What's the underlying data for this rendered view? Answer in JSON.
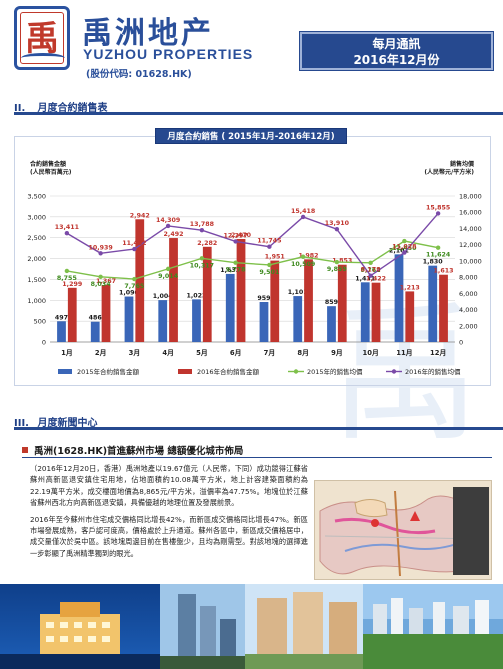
{
  "header": {
    "logo_char": "禹",
    "logo_sub": "洲",
    "brand_cn": "禹洲地产",
    "brand_en": "YUZHOU PROPERTIES",
    "stock_code": "(股份代码: 01628.HK)",
    "report_line1": "每月通訊",
    "report_line2": "2016年12月份"
  },
  "section2": {
    "num": "II.",
    "title": "月度合約銷售表"
  },
  "section3": {
    "num": "III.",
    "title": "月度新聞中心"
  },
  "watermark": "禹",
  "chart_data": {
    "type": "bar",
    "title": "月度合約銷售 ( 2015年1月-2016年12月)",
    "ylabel_left": "合約銷售金額\n(人民幣百萬元)",
    "ylabel_right": "銷售均價\n(人民幣元/平方米)",
    "ylim_left": [
      0,
      3500
    ],
    "ylim_right": [
      0,
      18000
    ],
    "yticks_left": [
      "0",
      "500",
      "1,000",
      "1,500",
      "2,000",
      "2,500",
      "3,000",
      "3,500"
    ],
    "yticks_right": [
      "0",
      "2,000",
      "4,000",
      "6,000",
      "8,000",
      "10,000",
      "12,000",
      "14,000",
      "16,000",
      "18,000"
    ],
    "categories": [
      "1月",
      "2月",
      "3月",
      "4月",
      "5月",
      "6月",
      "7月",
      "8月",
      "9月",
      "10月",
      "11月",
      "12月"
    ],
    "bars": [
      {
        "name": "2015年合約銷售金額",
        "color": "#3a66b8",
        "label_color": "#1a1a1a",
        "values": [
          497,
          486,
          1090,
          1004,
          1022,
          1632,
          959,
          1101,
          859,
          1431,
          2101,
          1830
        ],
        "labels": [
          "497",
          "486",
          "1,090",
          "1,004",
          "1,022",
          "1,632",
          "959",
          "1,101",
          "859",
          "1,431",
          "2,101",
          "1,830"
        ]
      },
      {
        "name": "2016年合約銷售金額",
        "color": "#c0352e",
        "label_color": "#c0352e",
        "values": [
          1299,
          1367,
          2942,
          2492,
          2282,
          2470,
          1951,
          1982,
          1853,
          1422,
          1213,
          1613
        ],
        "labels": [
          "1,299",
          "1,367",
          "2,942",
          "2,492",
          "2,282",
          "2,470",
          "1,951",
          "1,982",
          "1,853",
          "1,422",
          "1,213",
          "1,613"
        ]
      }
    ],
    "lines": [
      {
        "name": "2015年的銷售均價",
        "color": "#7ec04a",
        "label_color": "#3e8a1e",
        "values": [
          8755,
          8034,
          7765,
          9014,
          10317,
          9778,
          9501,
          10509,
          9859,
          9762,
          12450,
          11624
        ],
        "labels": [
          "8,755",
          "8,034",
          "7,765",
          "9,014",
          "10,317",
          "9,778",
          "9,501",
          "10,509",
          "9,859",
          "9,762",
          "12,450",
          "11,624"
        ]
      },
      {
        "name": "2016年的銷售均價",
        "color": "#7a4aa8",
        "label_color": "#c0352e",
        "values": [
          13411,
          10939,
          11462,
          14309,
          13788,
          12397,
          11745,
          15418,
          13910,
          8178,
          11028,
          15855
        ],
        "labels": [
          "13,411",
          "10,939",
          "11,462",
          "14,309",
          "13,788",
          "12,397",
          "11,745",
          "15,418",
          "13,910",
          "8,178",
          "11,028",
          "15,855"
        ]
      }
    ],
    "legend": [
      "2015年合約銷售金額",
      "2016年合約銷售金額",
      "2015年的銷售均價",
      "2016年的銷售均價"
    ],
    "legend_position": "bottom",
    "grid": true
  },
  "news": {
    "headline": "禹洲(1628.HK)首進蘇州市場 總額優化城市佈局",
    "para1": "（2016年12月20日，香港）禹洲地產以19.67億元（人民幣，下同）成功競得江蘇省蘇州高新區退安鎮住宅用地，佔地面積約10.08萬平方米，地上計容建築面積約為22.19萬平方米，成交樓面地價為8,865元/平方米，溢價率為47.75%。地塊位於江蘇省蘇州西北方向高新區退安鎮，具備優越的地理位置及發展前景。",
    "para2": "2016年至今蘇州市住宅成交價格同比增長42%，而新區成交價格同比增長47%。新區市場發展成熟，客戶認可度高，價格處於上升通道。蘇州各區中，新區成交價格居中，成交量僅次於吳中區。該地塊周邊目前在售樓盤少，且均為剛需型。對該地塊的選擇進一步彰顯了禹洲精準獨到的眼光。"
  }
}
